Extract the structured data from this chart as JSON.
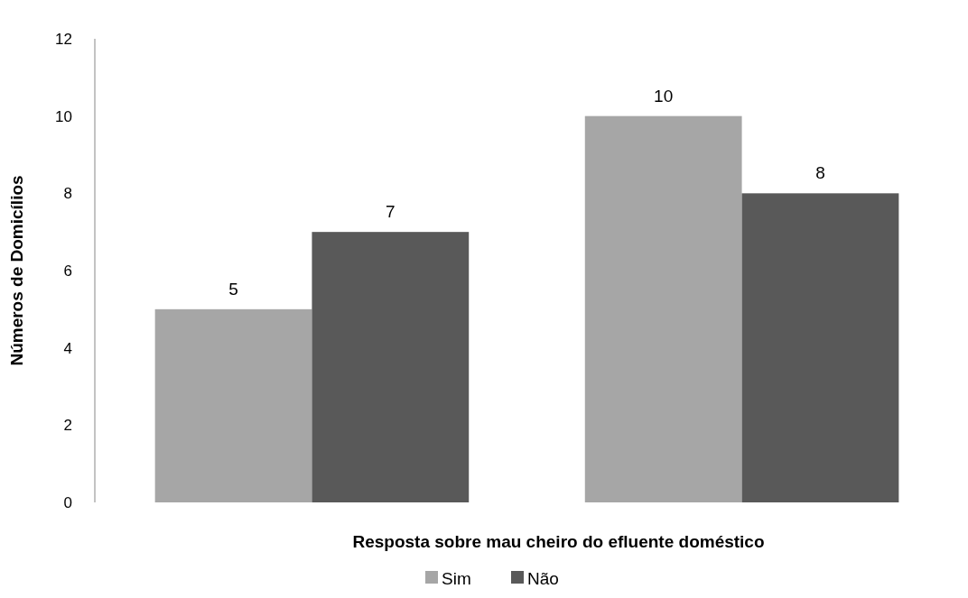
{
  "chart_data": {
    "type": "bar",
    "categories": [
      null,
      null
    ],
    "series": [
      {
        "name": "Sim",
        "color": "#a6a6a6",
        "values": [
          5,
          10
        ]
      },
      {
        "name": "Não",
        "color": "#595959",
        "values": [
          7,
          8
        ]
      }
    ],
    "xlabel": "Resposta sobre mau cheiro do efluente doméstico",
    "ylabel": "Números de Domicílios",
    "ylim": [
      0,
      12
    ],
    "yticks": [
      0,
      2,
      4,
      6,
      8,
      10,
      12
    ],
    "data_labels": true,
    "grid": false,
    "legend": "bottom"
  }
}
